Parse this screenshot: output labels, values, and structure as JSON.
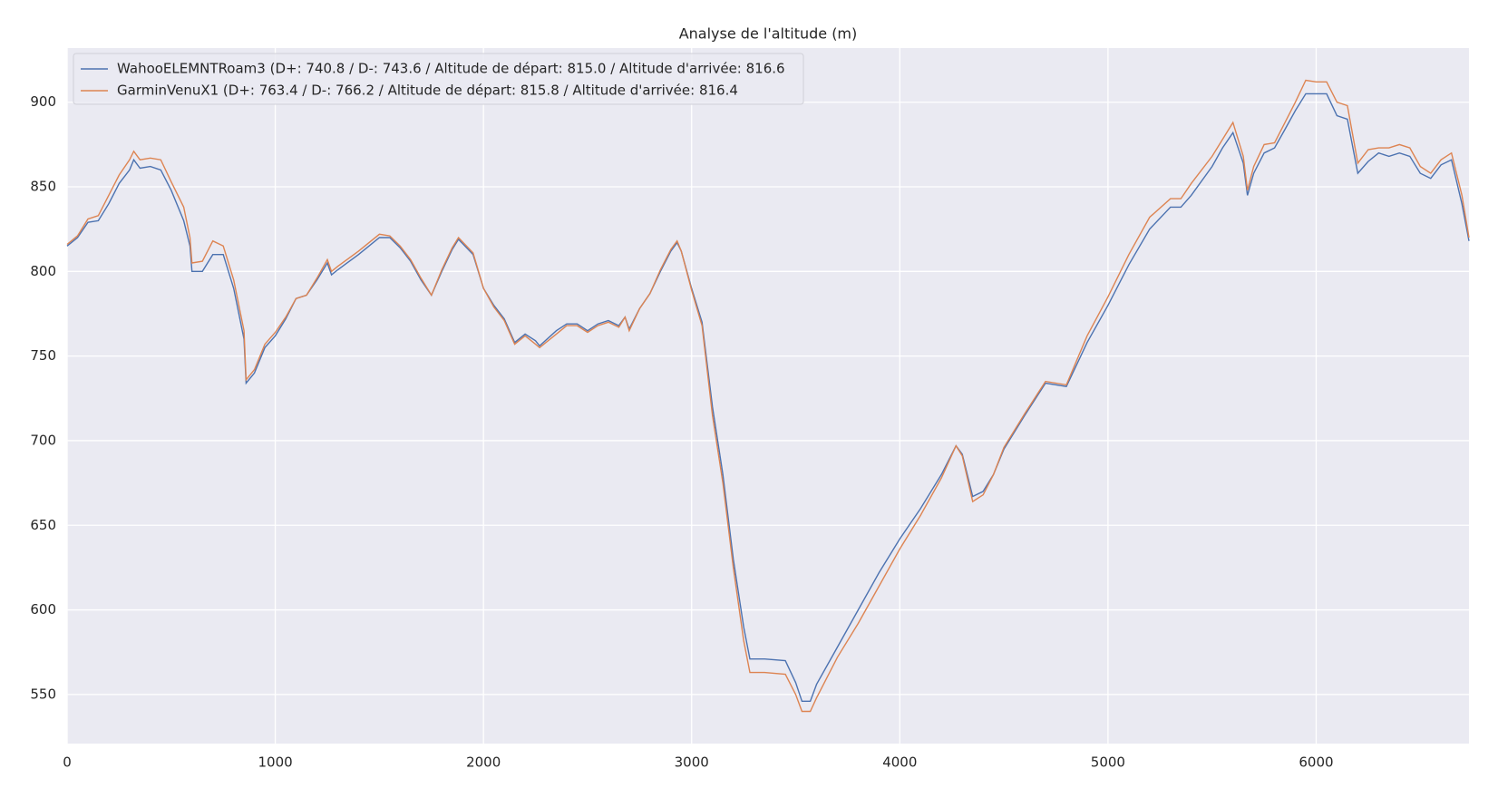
{
  "chart_data": {
    "type": "line",
    "title": "Analyse de l'altitude (m)",
    "x": [
      0,
      50,
      100,
      150,
      200,
      250,
      300,
      320,
      350,
      400,
      450,
      500,
      560,
      590,
      600,
      650,
      700,
      750,
      800,
      850,
      860,
      900,
      950,
      1000,
      1050,
      1100,
      1150,
      1200,
      1250,
      1270,
      1300,
      1400,
      1500,
      1550,
      1600,
      1650,
      1700,
      1750,
      1800,
      1850,
      1880,
      1950,
      2000,
      2050,
      2100,
      2150,
      2200,
      2250,
      2270,
      2350,
      2400,
      2450,
      2500,
      2550,
      2600,
      2650,
      2680,
      2700,
      2750,
      2800,
      2850,
      2900,
      2930,
      2950,
      3000,
      3050,
      3100,
      3150,
      3200,
      3250,
      3280,
      3350,
      3450,
      3500,
      3530,
      3570,
      3600,
      3700,
      3800,
      3900,
      4000,
      4100,
      4200,
      4270,
      4300,
      4350,
      4400,
      4450,
      4500,
      4600,
      4700,
      4800,
      4900,
      5000,
      5100,
      5200,
      5300,
      5350,
      5400,
      5500,
      5550,
      5600,
      5650,
      5670,
      5700,
      5750,
      5800,
      5850,
      5900,
      5950,
      6000,
      6050,
      6100,
      6150,
      6200,
      6250,
      6300,
      6350,
      6400,
      6450,
      6500,
      6550,
      6600,
      6650,
      6700,
      6734
    ],
    "series": [
      {
        "name": "WahooELEMNTRoam3 (D+: 740.8 / D-: 743.6 / Altitude de départ: 815.0 / Altitude d'arrivée: 816.6",
        "color": "#4c72b0",
        "values": [
          815,
          820,
          829,
          830,
          840,
          852,
          860,
          866,
          861,
          862,
          860,
          848,
          830,
          815,
          800,
          800,
          810,
          810,
          790,
          760,
          734,
          740,
          755,
          762,
          772,
          784,
          786,
          795,
          805,
          798,
          801,
          810,
          820,
          820,
          814,
          806,
          795,
          786,
          800,
          813,
          819,
          810,
          790,
          780,
          772,
          758,
          763,
          759,
          756,
          765,
          769,
          769,
          765,
          769,
          771,
          768,
          773,
          766,
          778,
          787,
          800,
          812,
          817,
          812,
          790,
          770,
          720,
          680,
          630,
          590,
          571,
          571,
          570,
          557,
          546,
          546,
          556,
          578,
          600,
          622,
          642,
          660,
          680,
          697,
          692,
          667,
          670,
          680,
          695,
          715,
          734,
          732,
          758,
          780,
          804,
          825,
          838,
          838,
          845,
          862,
          873,
          882,
          864,
          845,
          858,
          870,
          873,
          884,
          895,
          905,
          905,
          905,
          892,
          890,
          858,
          865,
          870,
          868,
          870,
          868,
          858,
          855,
          863,
          866,
          840,
          818
        ]
      },
      {
        "name": "GarminVenuX1 (D+: 763.4 / D-: 766.2 / Altitude de départ: 815.8 / Altitude d'arrivée: 816.4",
        "color": "#dd8452",
        "values": [
          816,
          821,
          831,
          833,
          845,
          857,
          866,
          871,
          866,
          867,
          866,
          853,
          838,
          820,
          805,
          806,
          818,
          815,
          795,
          765,
          736,
          742,
          757,
          764,
          773,
          784,
          786,
          796,
          807,
          800,
          803,
          812,
          822,
          821,
          815,
          807,
          796,
          786,
          801,
          814,
          820,
          811,
          790,
          779,
          771,
          757,
          762,
          757,
          755,
          763,
          768,
          768,
          764,
          768,
          770,
          767,
          773,
          765,
          778,
          787,
          801,
          813,
          818,
          812,
          789,
          768,
          715,
          675,
          625,
          582,
          563,
          563,
          562,
          550,
          540,
          540,
          548,
          572,
          592,
          614,
          636,
          656,
          678,
          697,
          691,
          664,
          668,
          680,
          696,
          716,
          735,
          733,
          762,
          785,
          810,
          832,
          843,
          843,
          852,
          868,
          878,
          888,
          868,
          848,
          862,
          875,
          876,
          888,
          900,
          913,
          912,
          912,
          900,
          898,
          864,
          872,
          873,
          873,
          875,
          873,
          862,
          858,
          866,
          870,
          845,
          820
        ]
      }
    ],
    "xlim": [
      0,
      6734
    ],
    "ylim": [
      521,
      932
    ],
    "xticks": [
      0,
      1000,
      2000,
      3000,
      4000,
      5000,
      6000
    ],
    "yticks": [
      550,
      600,
      650,
      700,
      750,
      800,
      850,
      900
    ],
    "grid": true,
    "legend": "upper left"
  }
}
